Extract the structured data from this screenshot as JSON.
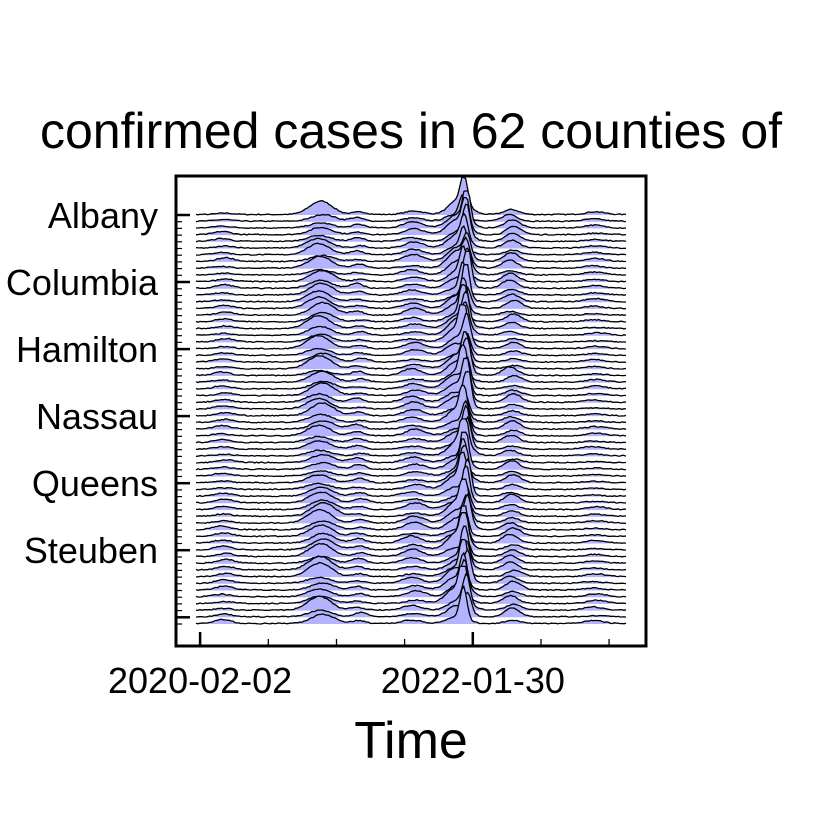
{
  "chart_data": {
    "type": "area",
    "subtype": "ridgeline",
    "title": "confirmed cases in 62 counties of",
    "xlabel": "Time",
    "ylabel": "",
    "x_range": [
      "2020-01-22",
      "2023-03-15"
    ],
    "x_ticks": [
      "2020-02-02",
      "2022-01-30"
    ],
    "y_ticks": [
      "Albany",
      "Columbia",
      "Hamilton",
      "Nassau",
      "Queens",
      "Steuben"
    ],
    "series_count": 62,
    "fill_color": "#b3b3ff",
    "line_color": "#000000",
    "grid": false,
    "legend": "none",
    "peaks": [
      {
        "date": "2020-04-05",
        "relative_height": 0.1
      },
      {
        "date": "2020-12-20",
        "relative_height": 0.35
      },
      {
        "date": "2021-04-01",
        "relative_height": 0.12
      },
      {
        "date": "2021-08-25",
        "relative_height": 0.18
      },
      {
        "date": "2021-12-20",
        "relative_height": 0.45
      },
      {
        "date": "2022-01-10",
        "relative_height": 1.0
      },
      {
        "date": "2022-05-15",
        "relative_height": 0.22
      },
      {
        "date": "2022-12-20",
        "relative_height": 0.08
      }
    ]
  }
}
